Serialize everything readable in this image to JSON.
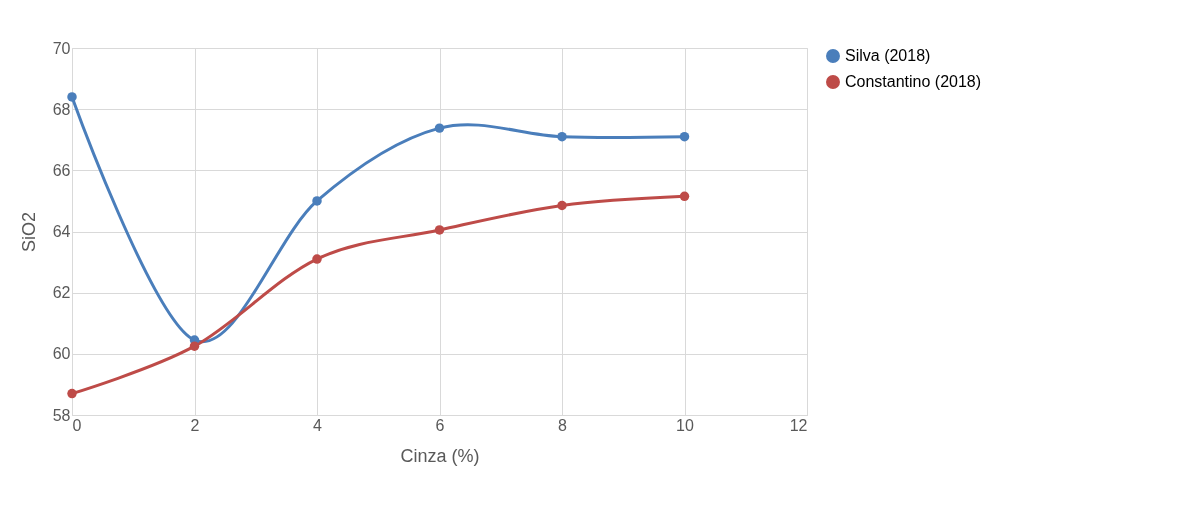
{
  "chart_data": {
    "type": "line",
    "xlabel": "Cinza (%)",
    "ylabel": "SiO2",
    "x": [
      0,
      2,
      4,
      6,
      8,
      10
    ],
    "series": [
      {
        "name": "Silva (2018)",
        "color": "#4a7ebb",
        "values": [
          68.4,
          60.45,
          65.0,
          67.38,
          67.1,
          67.1
        ]
      },
      {
        "name": "Constantino (2018)",
        "color": "#be4b48",
        "values": [
          58.7,
          60.25,
          63.1,
          64.05,
          64.85,
          65.15
        ]
      }
    ],
    "xlim": [
      0,
      12
    ],
    "xticks": [
      0,
      2,
      4,
      6,
      8,
      10,
      12
    ],
    "ylim": [
      58,
      70
    ],
    "yticks": [
      58,
      60,
      62,
      64,
      66,
      68,
      70
    ],
    "grid": true,
    "legend": "right",
    "marker": "circle",
    "line_style": "solid"
  }
}
